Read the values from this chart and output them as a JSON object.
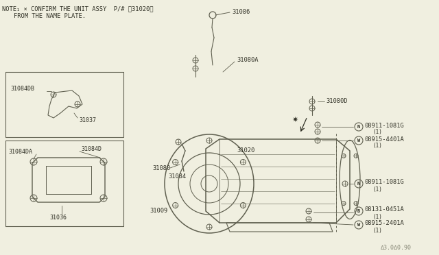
{
  "bg_color": "#f0efe0",
  "line_color": "#606050",
  "text_color": "#303025",
  "note1": "NOTE₁ × CONFIRM THE UNIT ASSY  P/# 〘31020〙",
  "note2": "FROM THE NAME PLATE.",
  "watermark": "Δ3.0Δ0.90",
  "figsize": [
    6.4,
    3.72
  ],
  "dpi": 100
}
